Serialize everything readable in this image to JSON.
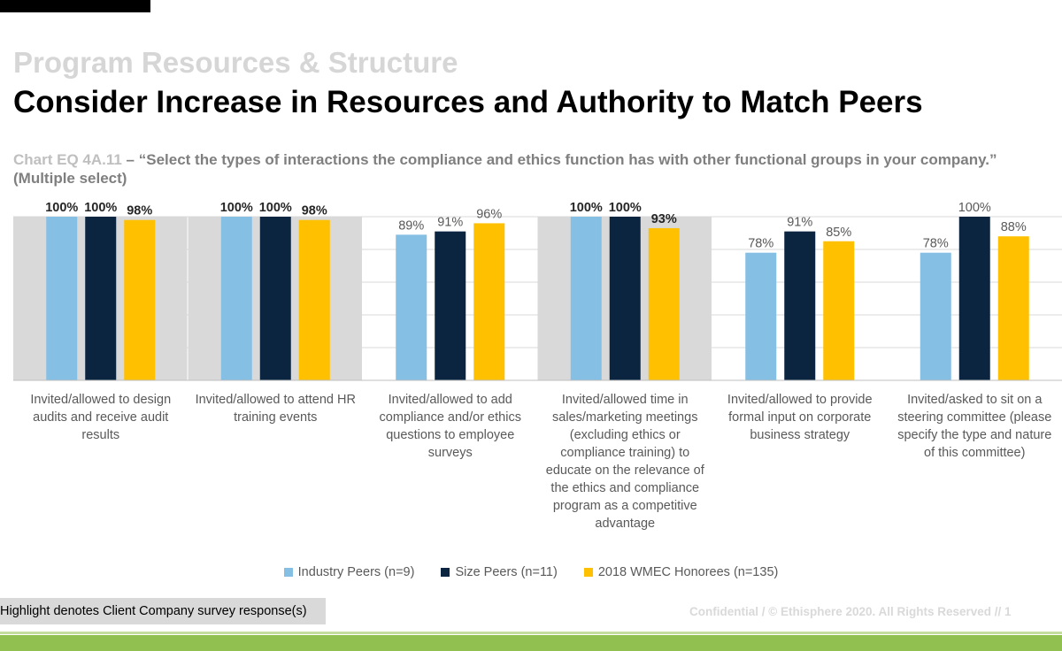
{
  "header": {
    "supertitle": "Program Resources & Structure",
    "title": "Consider Increase in Resources and Authority to Match Peers"
  },
  "subtitle": {
    "chart_id": "Chart EQ 4A.11",
    "question": " – “Select the types of interactions the compliance and ethics function has with other functional groups in your company.” (Multiple select)"
  },
  "colors": {
    "industry": "#85bfe4",
    "size": "#0b2440",
    "wmec": "#ffc000",
    "highlight": "#d9d9d9",
    "grid": "#d9d9d9"
  },
  "chart_data": {
    "type": "bar",
    "title": "",
    "ylim": [
      0,
      100
    ],
    "categories": [
      [
        "Invited/allowed to design",
        "audits and receive audit",
        "results"
      ],
      [
        "Invited/allowed to attend HR",
        "training events"
      ],
      [
        "Invited/allowed to add",
        "compliance and/or ethics",
        "questions to employee",
        "surveys"
      ],
      [
        "Invited/allowed time in",
        "sales/marketing meetings",
        "(excluding ethics or",
        "compliance training) to",
        "educate on the relevance of",
        "the ethics and compliance",
        "program as a competitive",
        "advantage"
      ],
      [
        "Invited/allowed to provide",
        "formal input on corporate",
        "business strategy"
      ],
      [
        "Invited/asked to sit on a",
        "steering committee (please",
        "specify the type and nature",
        "of this committee)"
      ]
    ],
    "highlighted": [
      true,
      true,
      false,
      true,
      false,
      false
    ],
    "series": [
      {
        "name": "Industry Peers (n=9)",
        "values": [
          100,
          100,
          89,
          100,
          78,
          78
        ],
        "labels": [
          "100%",
          "100%",
          "89%",
          "100%",
          "78%",
          "78%"
        ]
      },
      {
        "name": "Size Peers (n=11)",
        "values": [
          100,
          100,
          91,
          100,
          91,
          100
        ],
        "labels": [
          "100%",
          "100%",
          "91%",
          "100%",
          "91%",
          "100%"
        ]
      },
      {
        "name": "2018 WMEC Honorees (n=135)",
        "values": [
          98,
          98,
          96,
          93,
          85,
          88
        ],
        "labels": [
          "98%",
          "98%",
          "96%",
          "93%",
          "85%",
          "88%"
        ]
      }
    ]
  },
  "footer": {
    "footnote": "Highlight denotes Client Company survey response(s)",
    "confidential": "Confidential  /  © Ethisphere 2020. All Rights Reserved   //  1"
  }
}
